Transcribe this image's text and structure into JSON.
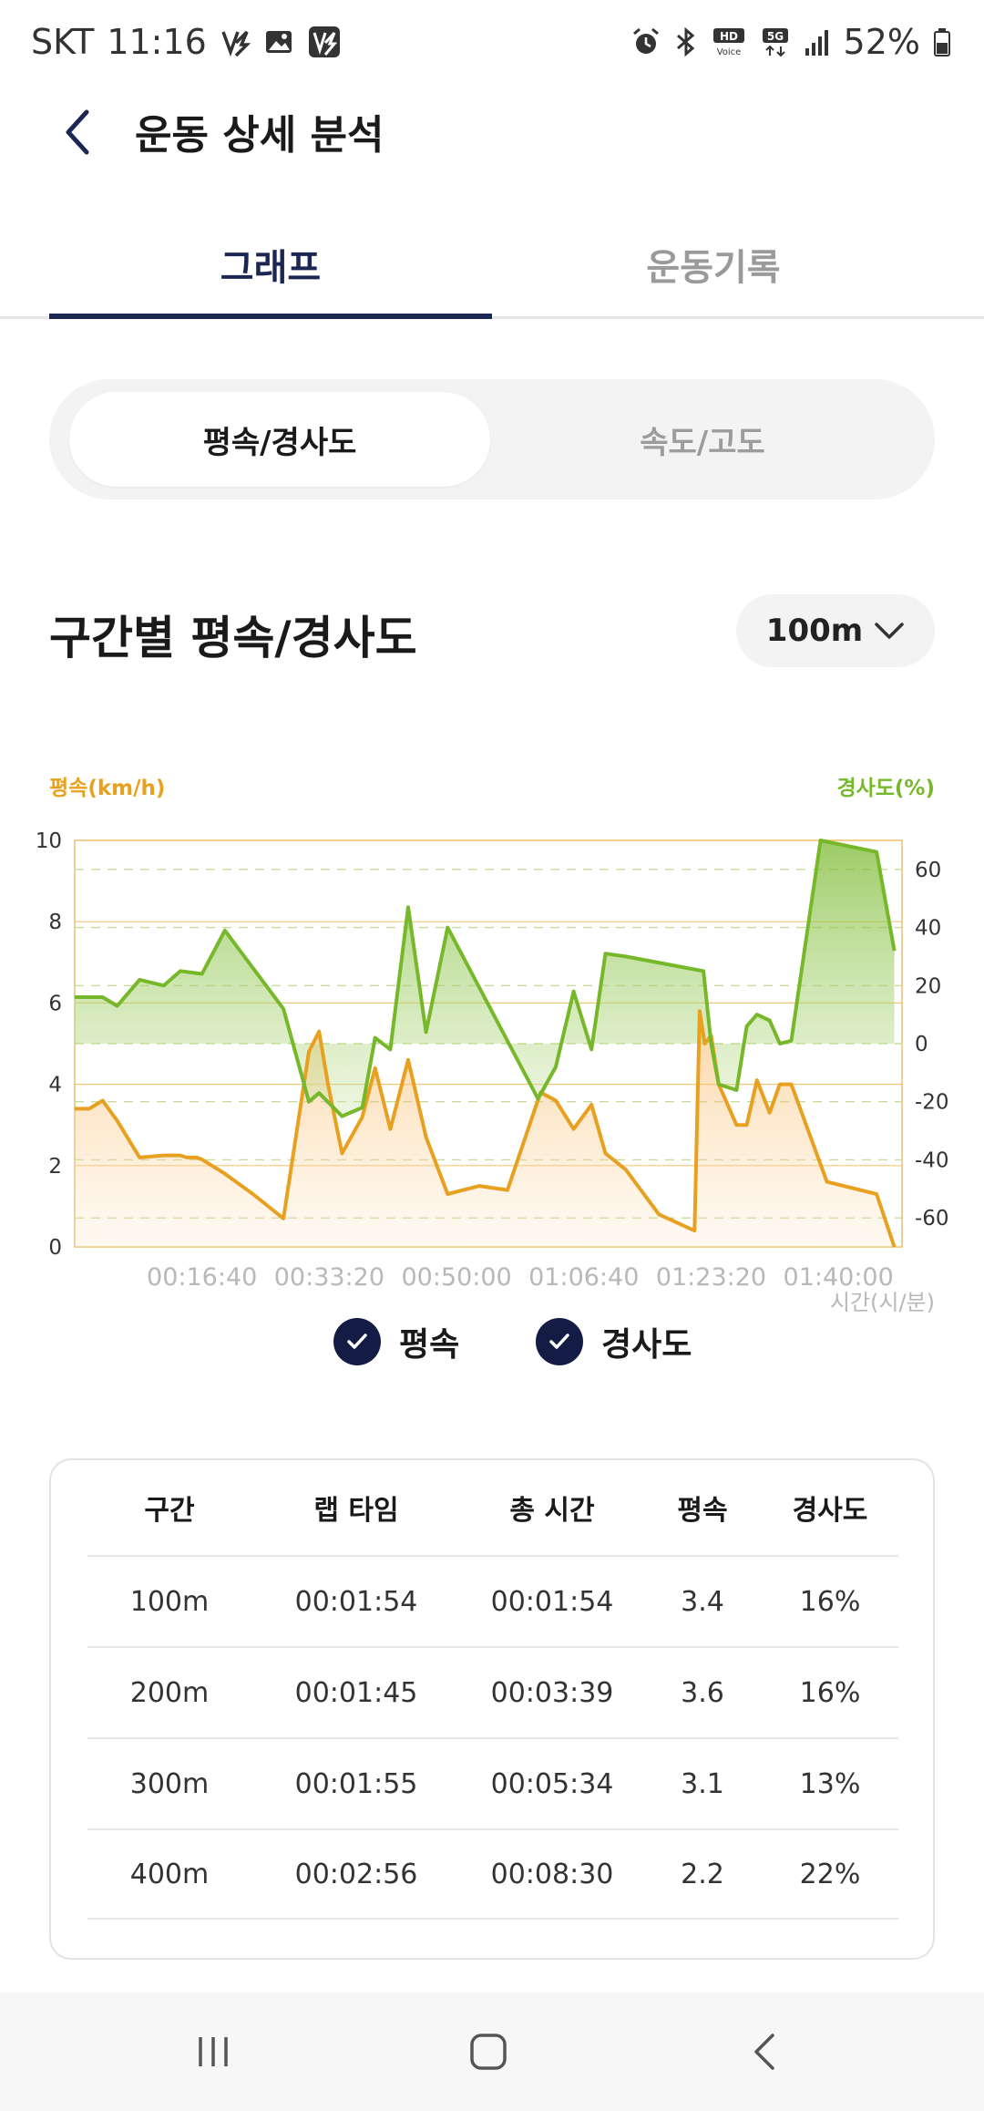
{
  "status_bar": {
    "carrier": "SKT",
    "time": "11:16",
    "battery": "52%"
  },
  "header": {
    "title": "운동 상세 분석"
  },
  "tabs": [
    {
      "label": "그래프",
      "active": true
    },
    {
      "label": "운동기록",
      "active": false
    }
  ],
  "segment": {
    "options": [
      "평속/경사도",
      "속도/고도"
    ],
    "selected": "평속/경사도"
  },
  "section": {
    "title": "구간별 평속/경사도",
    "interval": "100m"
  },
  "chart_data": {
    "type": "area",
    "left_axis_label": "평속(km/h)",
    "right_axis_label": "경사도(%)",
    "x_axis_label": "시간(시/분)",
    "x_ticks": [
      "00:16:40",
      "00:33:20",
      "00:50:00",
      "01:06:40",
      "01:23:20",
      "01:40:00"
    ],
    "y_left_ticks": [
      "10",
      "8",
      "6",
      "4",
      "2",
      "0"
    ],
    "y_right_ticks": [
      "60",
      "40",
      "20",
      "0",
      "-20",
      "-40",
      "-60"
    ],
    "y_left_range": [
      0,
      10
    ],
    "y_right_range": [
      -70,
      70
    ],
    "x_range_seconds": [
      0,
      6500
    ],
    "colors": {
      "speed": "#e8a020",
      "slope": "#76b82a"
    },
    "series": [
      {
        "name": "평속",
        "x": [
          0,
          114,
          219,
          334,
          510,
          700,
          830,
          880,
          960,
          1000,
          1180,
          1400,
          1640,
          1840,
          1920,
          1990,
          2100,
          2260,
          2360,
          2480,
          2620,
          2760,
          2930,
          3180,
          3400,
          3660,
          3780,
          3920,
          4060,
          4170,
          4330,
          4590,
          4870,
          4910,
          4950,
          5000,
          5060,
          5200,
          5280,
          5360,
          5460,
          5540,
          5630,
          5910,
          6300,
          6440
        ],
        "values": [
          3.4,
          3.4,
          3.6,
          3.1,
          2.2,
          2.25,
          2.25,
          2.2,
          2.2,
          2.15,
          1.8,
          1.3,
          0.7,
          4.8,
          5.3,
          4.0,
          2.3,
          3.2,
          4.4,
          2.9,
          4.6,
          2.7,
          1.3,
          1.5,
          1.4,
          3.8,
          3.6,
          2.9,
          3.5,
          2.3,
          1.9,
          0.8,
          0.4,
          5.8,
          5.0,
          5.2,
          4.0,
          3.0,
          3.0,
          4.1,
          3.3,
          4.0,
          4.0,
          1.6,
          1.3,
          0.0
        ]
      },
      {
        "name": "경사도",
        "x": [
          0,
          114,
          219,
          334,
          510,
          700,
          830,
          1000,
          1180,
          1640,
          1840,
          1920,
          2100,
          2260,
          2360,
          2480,
          2620,
          2760,
          2930,
          3640,
          3780,
          3920,
          4060,
          4170,
          4330,
          4940,
          5000,
          5060,
          5200,
          5280,
          5360,
          5460,
          5540,
          5630,
          5860,
          6300,
          6440
        ],
        "values": [
          16,
          16,
          16,
          13,
          22,
          20,
          25,
          24,
          39,
          12,
          -20,
          -17,
          -25,
          -22,
          2,
          -2,
          47,
          4,
          40,
          -19,
          -8,
          18,
          -2,
          31,
          30,
          25,
          0,
          -14,
          -16,
          6,
          10,
          8,
          0,
          1,
          70,
          66,
          32
        ]
      }
    ]
  },
  "legend": {
    "items": [
      "평속",
      "경사도"
    ]
  },
  "table": {
    "headers": [
      "구간",
      "랩 타임",
      "총 시간",
      "평속",
      "경사도"
    ],
    "rows": [
      [
        "100m",
        "00:01:54",
        "00:01:54",
        "3.4",
        "16%"
      ],
      [
        "200m",
        "00:01:45",
        "00:03:39",
        "3.6",
        "16%"
      ],
      [
        "300m",
        "00:01:55",
        "00:05:34",
        "3.1",
        "13%"
      ],
      [
        "400m",
        "00:02:56",
        "00:08:30",
        "2.2",
        "22%"
      ]
    ]
  },
  "nav": {
    "icons": [
      "recent-apps-icon",
      "home-icon",
      "back-icon"
    ]
  }
}
